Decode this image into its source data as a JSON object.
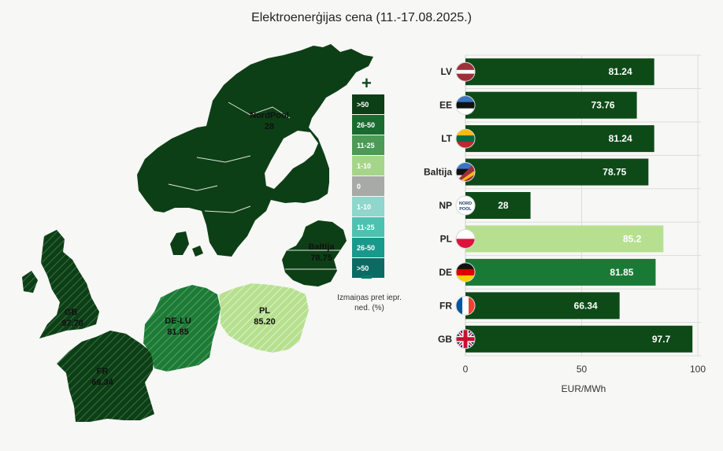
{
  "title": "Elektroenerģijas cena (11.-17.08.2025.)",
  "colors": {
    "dark_green": "#0d4a17",
    "mid_green": "#197a35",
    "light_green": "#b6e08f",
    "grid": "#dddddd"
  },
  "map": {
    "regions": [
      {
        "id": "nordpool",
        "name": "NordPool",
        "value": "28"
      },
      {
        "id": "baltija",
        "name": "Baltija",
        "value": "78.75"
      },
      {
        "id": "pl",
        "name": "PL",
        "value": "85.20"
      },
      {
        "id": "de-lu",
        "name": "DE-LU",
        "value": "81.85"
      },
      {
        "id": "gb",
        "name": "GB",
        "value": "97.70"
      },
      {
        "id": "fr",
        "name": "FR",
        "value": "66.34"
      }
    ]
  },
  "legend": {
    "plus": "+",
    "items": [
      {
        "label": ">50",
        "color": "#0d3f16",
        "text": "#ffffff"
      },
      {
        "label": "26-50",
        "color": "#1a6b2f",
        "text": "#ffffff"
      },
      {
        "label": "11-25",
        "color": "#4c9a56",
        "text": "#ffffff"
      },
      {
        "label": "1-10",
        "color": "#a6d58a",
        "text": "#ffffff"
      },
      {
        "label": "0",
        "color": "#a8aaa8",
        "text": "#ffffff"
      },
      {
        "label": "1-10",
        "color": "#8fd6cc",
        "text": "#ffffff"
      },
      {
        "label": "11-25",
        "color": "#4ec1b1",
        "text": "#ffffff"
      },
      {
        "label": "26-50",
        "color": "#18998b",
        "text": "#ffffff"
      },
      {
        "label": ">50",
        "color": "#0b6b63",
        "text": "#ffffff"
      }
    ],
    "caption": "Izmaiņas pret iepr. ned. (%)"
  },
  "chart_data": {
    "type": "bar",
    "orientation": "horizontal",
    "categories": [
      "LV",
      "EE",
      "LT",
      "Baltija",
      "NP",
      "PL",
      "DE",
      "FR",
      "GB"
    ],
    "values": [
      81.24,
      73.76,
      81.24,
      78.75,
      28,
      85.2,
      81.85,
      66.34,
      97.7
    ],
    "value_labels": [
      "81.24",
      "73.76",
      "81.24",
      "78.75",
      "28",
      "85.2",
      "81.85",
      "66.34",
      "97.7"
    ],
    "bar_colors": [
      "#0d4a17",
      "#0d4a17",
      "#0d4a17",
      "#0d4a17",
      "#0d4a17",
      "#b6e08f",
      "#197a35",
      "#0d4a17",
      "#0d4a17"
    ],
    "flags": [
      "lv-flag-icon",
      "ee-flag-icon",
      "lt-flag-icon",
      "baltija-flag-icon",
      "nordpool-logo-icon",
      "pl-flag-icon",
      "de-flag-icon",
      "fr-flag-icon",
      "gb-flag-icon"
    ],
    "xlabel": "EUR/MWh",
    "xlim": [
      0,
      100
    ],
    "xticks": [
      0,
      50,
      100
    ],
    "grid": true
  }
}
